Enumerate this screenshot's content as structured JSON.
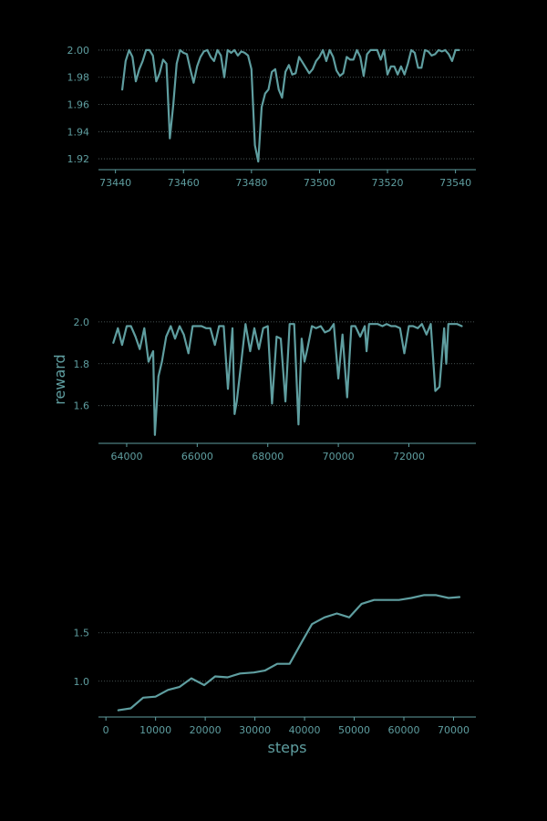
{
  "colors": {
    "background": "#000000",
    "accent": "#5f9ea0",
    "grid": "#5a6a6a"
  },
  "chart_data": [
    {
      "type": "line",
      "title": "",
      "xlabel": "",
      "ylabel": "",
      "xlim": [
        73435,
        73546
      ],
      "ylim": [
        1.912,
        2.006
      ],
      "xticks": [
        73440,
        73460,
        73480,
        73500,
        73520,
        73540
      ],
      "xtick_labels": [
        "73440",
        "73460",
        "73480",
        "73500",
        "73520",
        "73540"
      ],
      "yticks": [
        1.92,
        1.94,
        1.96,
        1.98,
        2.0
      ],
      "ytick_labels": [
        "1.92",
        "1.94",
        "1.96",
        "1.98",
        "2.00"
      ],
      "grid": "horizontal-dotted",
      "series": [
        {
          "x": [
            73442,
            73443,
            73444,
            73445,
            73446,
            73447,
            73448,
            73449,
            73450,
            73451,
            73452,
            73453,
            73454,
            73455,
            73456,
            73457,
            73458,
            73459,
            73460,
            73461,
            73462,
            73463,
            73464,
            73465,
            73466,
            73467,
            73468,
            73469,
            73470,
            73471,
            73472,
            73473,
            73474,
            73475,
            73476,
            73477,
            73478,
            73479,
            73480,
            73481,
            73482,
            73483,
            73484,
            73485,
            73486,
            73487,
            73488,
            73489,
            73490,
            73491,
            73492,
            73493,
            73494,
            73495,
            73496,
            73497,
            73498,
            73499,
            73500,
            73501,
            73502,
            73503,
            73504,
            73505,
            73506,
            73507,
            73508,
            73509,
            73510,
            73511,
            73512,
            73513,
            73514,
            73515,
            73516,
            73517,
            73518,
            73519,
            73520,
            73521,
            73522,
            73523,
            73524,
            73525,
            73526,
            73527,
            73528,
            73529,
            73530,
            73531,
            73532,
            73533,
            73534,
            73535,
            73536,
            73537,
            73538,
            73539,
            73540,
            73541
          ],
          "y": [
            1.971,
            1.992,
            2.0,
            1.995,
            1.977,
            1.986,
            1.992,
            2.0,
            2.0,
            1.996,
            1.977,
            1.983,
            1.993,
            1.99,
            1.935,
            1.96,
            1.99,
            2.0,
            1.998,
            1.997,
            1.986,
            1.976,
            1.988,
            1.995,
            1.999,
            2.0,
            1.995,
            1.992,
            2.0,
            1.996,
            1.98,
            2.0,
            1.998,
            2.0,
            1.996,
            1.999,
            1.998,
            1.996,
            1.986,
            1.93,
            1.918,
            1.958,
            1.968,
            1.971,
            1.984,
            1.986,
            1.971,
            1.965,
            1.984,
            1.989,
            1.982,
            1.983,
            1.995,
            1.991,
            1.987,
            1.983,
            1.986,
            1.992,
            1.995,
            2.0,
            1.992,
            2.0,
            1.995,
            1.985,
            1.981,
            1.983,
            1.995,
            1.993,
            1.993,
            2.0,
            1.995,
            1.981,
            1.997,
            2.0,
            2.0,
            2.0,
            1.993,
            2.0,
            1.982,
            1.988,
            1.988,
            1.982,
            1.988,
            1.982,
            1.99,
            2.0,
            1.998,
            1.987,
            1.987,
            2.0,
            1.999,
            1.996,
            1.997,
            2.0,
            1.999,
            2.0,
            1.997,
            1.992,
            2.0,
            2.0
          ]
        }
      ]
    },
    {
      "type": "line",
      "title": "",
      "xlabel": "",
      "ylabel": "reward",
      "xlim": [
        63200,
        73900
      ],
      "ylim": [
        1.42,
        2.03
      ],
      "xticks": [
        64000,
        66000,
        68000,
        70000,
        72000
      ],
      "xtick_labels": [
        "64000",
        "66000",
        "68000",
        "70000",
        "72000"
      ],
      "yticks": [
        1.6,
        1.8,
        2.0
      ],
      "ytick_labels": [
        "1.6",
        "1.8",
        "2.0"
      ],
      "grid": "horizontal-dotted",
      "series": [
        {
          "x": [
            63620,
            63750,
            63870,
            64000,
            64120,
            64250,
            64370,
            64500,
            64620,
            64750,
            64800,
            64900,
            65000,
            65120,
            65250,
            65370,
            65500,
            65620,
            65750,
            65870,
            66000,
            66120,
            66250,
            66370,
            66500,
            66620,
            66750,
            66870,
            67000,
            67060,
            67120,
            67250,
            67370,
            67500,
            67620,
            67750,
            67870,
            68000,
            68120,
            68250,
            68370,
            68500,
            68620,
            68750,
            68870,
            68960,
            69040,
            69120,
            69250,
            69370,
            69500,
            69620,
            69750,
            69870,
            70000,
            70120,
            70250,
            70370,
            70480,
            70620,
            70750,
            70800,
            70870,
            71000,
            71120,
            71250,
            71370,
            71500,
            71620,
            71750,
            71870,
            72000,
            72120,
            72250,
            72370,
            72500,
            72620,
            72750,
            72870,
            73000,
            73060,
            73120,
            73250,
            73370,
            73500
          ],
          "y": [
            1.9,
            1.97,
            1.89,
            1.98,
            1.98,
            1.93,
            1.87,
            1.97,
            1.81,
            1.86,
            1.46,
            1.74,
            1.81,
            1.93,
            1.98,
            1.92,
            1.98,
            1.94,
            1.85,
            1.98,
            1.98,
            1.98,
            1.97,
            1.97,
            1.89,
            1.98,
            1.98,
            1.68,
            1.97,
            1.56,
            1.62,
            1.81,
            1.99,
            1.86,
            1.97,
            1.87,
            1.97,
            1.98,
            1.61,
            1.93,
            1.92,
            1.62,
            1.99,
            1.99,
            1.51,
            1.92,
            1.81,
            1.87,
            1.98,
            1.97,
            1.98,
            1.95,
            1.96,
            1.99,
            1.73,
            1.94,
            1.64,
            1.98,
            1.98,
            1.93,
            1.98,
            1.86,
            1.99,
            1.99,
            1.99,
            1.98,
            1.99,
            1.98,
            1.98,
            1.97,
            1.85,
            1.98,
            1.98,
            1.97,
            1.99,
            1.94,
            1.99,
            1.67,
            1.69,
            1.97,
            1.8,
            1.99,
            1.99,
            1.99,
            1.98
          ]
        }
      ]
    },
    {
      "type": "line",
      "title": "",
      "xlabel": "steps",
      "ylabel": "",
      "xlim": [
        -1500,
        74500
      ],
      "ylim": [
        0.63,
        1.95
      ],
      "xticks": [
        0,
        10000,
        20000,
        30000,
        40000,
        50000,
        60000,
        70000
      ],
      "xtick_labels": [
        "0",
        "10000",
        "20000",
        "30000",
        "40000",
        "50000",
        "60000",
        "70000"
      ],
      "yticks": [
        1.0,
        1.5
      ],
      "ytick_labels": [
        "1.0",
        "1.5"
      ],
      "grid": "horizontal-dotted",
      "series": [
        {
          "x": [
            2500,
            5000,
            7500,
            10000,
            12500,
            14800,
            17200,
            19800,
            22000,
            24500,
            27000,
            29800,
            32000,
            34500,
            37000,
            39500,
            41500,
            44000,
            46500,
            49000,
            51500,
            54000,
            56500,
            59000,
            61500,
            64000,
            66500,
            69000,
            71200
          ],
          "y": [
            0.7,
            0.72,
            0.83,
            0.84,
            0.91,
            0.94,
            1.03,
            0.96,
            1.05,
            1.04,
            1.08,
            1.09,
            1.11,
            1.18,
            1.18,
            1.41,
            1.59,
            1.66,
            1.7,
            1.66,
            1.8,
            1.84,
            1.84,
            1.84,
            1.86,
            1.89,
            1.89,
            1.86,
            1.87
          ]
        }
      ]
    }
  ]
}
